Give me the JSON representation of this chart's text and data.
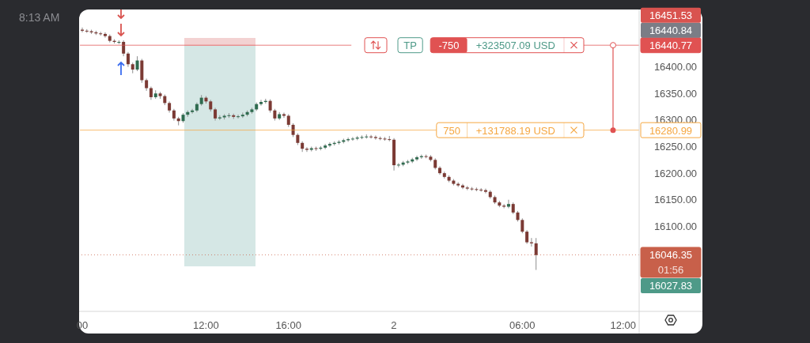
{
  "chart_data": {
    "type": "candlestick",
    "categories": [
      "00",
      null,
      null,
      null,
      null,
      null,
      null,
      null,
      null,
      null,
      null,
      null,
      null,
      null,
      null,
      null,
      null,
      null,
      null,
      null,
      null,
      null,
      null,
      null,
      null,
      null,
      null,
      "12:00",
      null,
      null,
      null,
      null,
      null,
      null,
      null,
      null,
      null,
      null,
      null,
      null,
      null,
      null,
      null,
      null,
      null,
      "16:00",
      null,
      null,
      null,
      null,
      null,
      null,
      null,
      null,
      null,
      null,
      null,
      null,
      null,
      null,
      null,
      null,
      null,
      null,
      null,
      null,
      null,
      null,
      "2",
      null,
      null,
      null,
      null,
      null,
      null,
      null,
      null,
      null,
      null,
      null,
      null,
      null,
      null,
      null,
      null,
      null,
      null,
      null,
      null,
      null,
      null,
      null,
      null,
      null,
      null,
      null,
      "06:00",
      null,
      null,
      null,
      null,
      null,
      null,
      null,
      null,
      null,
      null,
      null,
      null,
      null,
      null,
      null,
      null,
      null,
      null,
      null,
      null,
      null,
      "12:00",
      null,
      null,
      null
    ],
    "ohlc": [
      [
        16470,
        16474,
        16465,
        16468
      ],
      [
        16468,
        16471,
        16464,
        16467
      ],
      [
        16467,
        16470,
        16462,
        16465
      ],
      [
        16465,
        16468,
        16460,
        16463
      ],
      [
        16463,
        16466,
        16459,
        16462
      ],
      [
        16462,
        16465,
        16455,
        16458
      ],
      [
        16458,
        16461,
        16446,
        16449
      ],
      [
        16449,
        16452,
        16444,
        16447
      ],
      [
        16447,
        16450,
        16443,
        16447
      ],
      [
        16447,
        16450,
        16420,
        16425
      ],
      [
        16425,
        16428,
        16400,
        16405
      ],
      [
        16405,
        16408,
        16388,
        16395
      ],
      [
        16395,
        16420,
        16392,
        16412
      ],
      [
        16412,
        16415,
        16370,
        16375
      ],
      [
        16375,
        16378,
        16355,
        16360
      ],
      [
        16360,
        16363,
        16338,
        16343
      ],
      [
        16343,
        16356,
        16340,
        16350
      ],
      [
        16350,
        16353,
        16340,
        16345
      ],
      [
        16345,
        16348,
        16328,
        16332
      ],
      [
        16332,
        16335,
        16314,
        16318
      ],
      [
        16318,
        16321,
        16299,
        16303
      ],
      [
        16303,
        16306,
        16290,
        16298
      ],
      [
        16298,
        16313,
        16295,
        16310
      ],
      [
        16310,
        16318,
        16306,
        16315
      ],
      [
        16315,
        16321,
        16312,
        16318
      ],
      [
        16318,
        16333,
        16315,
        16330
      ],
      [
        16330,
        16347,
        16327,
        16342
      ],
      [
        16342,
        16345,
        16331,
        16335
      ],
      [
        16335,
        16338,
        16316,
        16320
      ],
      [
        16320,
        16323,
        16299,
        16303
      ],
      [
        16303,
        16309,
        16300,
        16305
      ],
      [
        16305,
        16311,
        16301,
        16308
      ],
      [
        16308,
        16313,
        16304,
        16309
      ],
      [
        16309,
        16312,
        16302,
        16306
      ],
      [
        16306,
        16310,
        16303,
        16307
      ],
      [
        16307,
        16314,
        16304,
        16310
      ],
      [
        16310,
        16318,
        16307,
        16315
      ],
      [
        16315,
        16323,
        16312,
        16320
      ],
      [
        16320,
        16333,
        16317,
        16330
      ],
      [
        16330,
        16338,
        16327,
        16334
      ],
      [
        16334,
        16340,
        16331,
        16336
      ],
      [
        16336,
        16339,
        16314,
        16318
      ],
      [
        16318,
        16321,
        16299,
        16303
      ],
      [
        16303,
        16315,
        16300,
        16311
      ],
      [
        16311,
        16314,
        16304,
        16308
      ],
      [
        16308,
        16311,
        16287,
        16291
      ],
      [
        16291,
        16294,
        16268,
        16272
      ],
      [
        16272,
        16275,
        16253,
        16257
      ],
      [
        16257,
        16260,
        16240,
        16246
      ],
      [
        16246,
        16249,
        16240,
        16244
      ],
      [
        16244,
        16250,
        16241,
        16247
      ],
      [
        16247,
        16250,
        16242,
        16246
      ],
      [
        16246,
        16251,
        16243,
        16248
      ],
      [
        16248,
        16255,
        16245,
        16252
      ],
      [
        16252,
        16258,
        16249,
        16255
      ],
      [
        16255,
        16260,
        16252,
        16257
      ],
      [
        16257,
        16262,
        16254,
        16259
      ],
      [
        16259,
        16265,
        16256,
        16262
      ],
      [
        16262,
        16267,
        16259,
        16264
      ],
      [
        16264,
        16268,
        16261,
        16265
      ],
      [
        16265,
        16270,
        16262,
        16267
      ],
      [
        16267,
        16271,
        16264,
        16268
      ],
      [
        16268,
        16273,
        16265,
        16269
      ],
      [
        16269,
        16272,
        16265,
        16268
      ],
      [
        16268,
        16271,
        16263,
        16266
      ],
      [
        16266,
        16269,
        16262,
        16265
      ],
      [
        16265,
        16268,
        16261,
        16264
      ],
      [
        16264,
        16270,
        16260,
        16263
      ],
      [
        16263,
        16266,
        16205,
        16215
      ],
      [
        16215,
        16219,
        16211,
        16216
      ],
      [
        16216,
        16223,
        16213,
        16220
      ],
      [
        16220,
        16225,
        16217,
        16222
      ],
      [
        16222,
        16229,
        16219,
        16226
      ],
      [
        16226,
        16233,
        16223,
        16230
      ],
      [
        16230,
        16235,
        16227,
        16232
      ],
      [
        16232,
        16235,
        16228,
        16231
      ],
      [
        16231,
        16234,
        16222,
        16225
      ],
      [
        16225,
        16228,
        16207,
        16210
      ],
      [
        16210,
        16213,
        16197,
        16200
      ],
      [
        16200,
        16203,
        16190,
        16193
      ],
      [
        16193,
        16196,
        16183,
        16186
      ],
      [
        16186,
        16189,
        16177,
        16180
      ],
      [
        16180,
        16183,
        16174,
        16177
      ],
      [
        16177,
        16180,
        16170,
        16173
      ],
      [
        16173,
        16176,
        16168,
        16171
      ],
      [
        16171,
        16174,
        16167,
        16170
      ],
      [
        16170,
        16173,
        16166,
        16169
      ],
      [
        16169,
        16172,
        16165,
        16168
      ],
      [
        16168,
        16171,
        16162,
        16165
      ],
      [
        16165,
        16168,
        16152,
        16155
      ],
      [
        16155,
        16158,
        16142,
        16145
      ],
      [
        16145,
        16148,
        16136,
        16139
      ],
      [
        16139,
        16142,
        16134,
        16137
      ],
      [
        16137,
        16150,
        16134,
        16142
      ],
      [
        16142,
        16145,
        16123,
        16126
      ],
      [
        16126,
        16129,
        16109,
        16112
      ],
      [
        16112,
        16115,
        16087,
        16090
      ],
      [
        16090,
        16093,
        16067,
        16070
      ],
      [
        16070,
        16078,
        16062,
        16068
      ],
      [
        16068,
        16078,
        16018,
        16046
      ],
      null,
      null,
      null,
      null,
      null,
      null,
      null,
      null,
      null,
      null,
      null,
      null,
      null,
      null,
      null,
      null,
      null,
      null,
      null,
      null,
      null,
      null
    ],
    "ylim": [
      15940,
      16505
    ],
    "yticks": [
      {
        "value": 16100,
        "label": "16100.00"
      },
      {
        "value": 16150,
        "label": "16150.00"
      },
      {
        "value": 16200,
        "label": "16200.00"
      },
      {
        "value": 16250,
        "label": "16250.00"
      },
      {
        "value": 16300,
        "label": "16300.00"
      },
      {
        "value": 16350,
        "label": "16350.00"
      },
      {
        "value": 16400,
        "label": "16400.00"
      }
    ],
    "ref_lines": [
      {
        "axis": "y",
        "value": 16440.77,
        "label": "16440.77",
        "color": "#e05252",
        "line_style": "solid"
      },
      {
        "axis": "y",
        "value": 16280.99,
        "label": "16280.99",
        "color": "#f5a742",
        "line_style": "solid"
      },
      {
        "axis": "y",
        "value": 16046.35,
        "label": "16046.35",
        "color": "#c8604a",
        "line_style": "dotted"
      }
    ],
    "annotations": [
      "8:13 AM",
      {
        "text": "TP",
        "y": 16440.77
      },
      {
        "text": "-750",
        "y": 16440.77
      },
      {
        "text": "+323507.09 USD",
        "y": 16440.77
      },
      {
        "text": "750",
        "y": 16280.99
      },
      {
        "text": "+131788.19 USD",
        "y": 16280.99
      },
      "01:56",
      "16451.53",
      "16440.84",
      "16027.83"
    ]
  }
}
